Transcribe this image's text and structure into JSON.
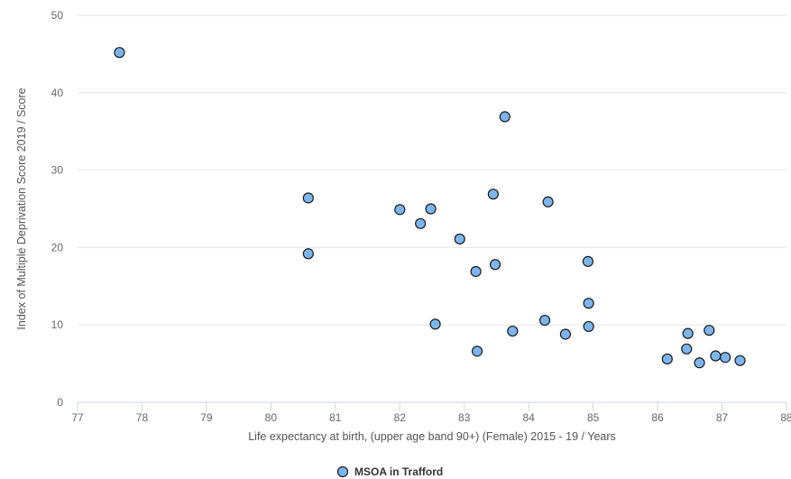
{
  "chart_data": {
    "type": "scatter",
    "title": "",
    "xlabel": "Life expectancy at birth, (upper age band 90+) (Female) 2015 - 19 / Years",
    "ylabel": "Index of Multiple Deprivation Score 2019 / Score",
    "xlim": [
      77,
      88
    ],
    "ylim": [
      0,
      50
    ],
    "x_ticks": [
      "77",
      "78",
      "79",
      "80",
      "81",
      "82",
      "83",
      "84",
      "85",
      "86",
      "87",
      "88"
    ],
    "y_ticks": [
      "0",
      "10",
      "20",
      "30",
      "40",
      "50"
    ],
    "grid": "horizontal",
    "legend_position": "bottom-center",
    "series": [
      {
        "name": "MSOA in Trafford",
        "color": "#7cb5ec",
        "points": [
          {
            "x": 77.65,
            "y": 45.2
          },
          {
            "x": 80.58,
            "y": 26.4
          },
          {
            "x": 80.58,
            "y": 19.2
          },
          {
            "x": 82.0,
            "y": 24.9
          },
          {
            "x": 82.32,
            "y": 23.1
          },
          {
            "x": 82.48,
            "y": 25.0
          },
          {
            "x": 82.55,
            "y": 10.1
          },
          {
            "x": 82.93,
            "y": 21.1
          },
          {
            "x": 83.18,
            "y": 16.9
          },
          {
            "x": 83.2,
            "y": 6.6
          },
          {
            "x": 83.45,
            "y": 26.9
          },
          {
            "x": 83.48,
            "y": 17.8
          },
          {
            "x": 83.63,
            "y": 36.9
          },
          {
            "x": 83.75,
            "y": 9.2
          },
          {
            "x": 84.25,
            "y": 10.6
          },
          {
            "x": 84.3,
            "y": 25.9
          },
          {
            "x": 84.57,
            "y": 8.8
          },
          {
            "x": 84.92,
            "y": 18.2
          },
          {
            "x": 84.93,
            "y": 12.8
          },
          {
            "x": 84.93,
            "y": 9.8
          },
          {
            "x": 86.15,
            "y": 5.6
          },
          {
            "x": 86.45,
            "y": 6.9
          },
          {
            "x": 86.47,
            "y": 8.9
          },
          {
            "x": 86.65,
            "y": 5.1
          },
          {
            "x": 86.8,
            "y": 9.3
          },
          {
            "x": 86.9,
            "y": 6.0
          },
          {
            "x": 87.05,
            "y": 5.8
          },
          {
            "x": 87.28,
            "y": 5.4
          }
        ]
      }
    ]
  }
}
